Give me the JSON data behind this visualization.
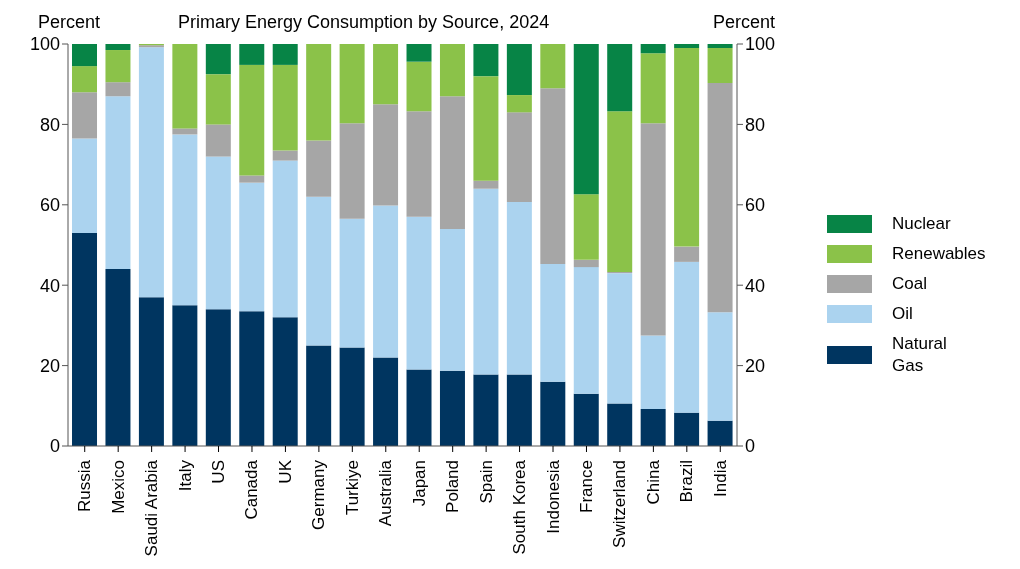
{
  "chart_data": {
    "type": "bar",
    "title": "Primary Energy Consumption by Source, 2024",
    "ylabel": "Percent",
    "y2label": "Percent",
    "categories": [
      "Russia",
      "Mexico",
      "Saudi Arabia",
      "Italy",
      "US",
      "Canada",
      "UK",
      "Germany",
      "Turkiye",
      "Australia",
      "Japan",
      "Poland",
      "Spain",
      "South Korea",
      "Indonesia",
      "France",
      "Switzerland",
      "China",
      "Brazil",
      "India"
    ],
    "stacked": true,
    "series": [
      {
        "name": "Natural Gas",
        "color": "#003560",
        "values": [
          53,
          44,
          37,
          35,
          34,
          33.5,
          32,
          25,
          24.5,
          22,
          19,
          18.7,
          17.8,
          17.8,
          16,
          13,
          10.6,
          9.2,
          8.3,
          6.3
        ]
      },
      {
        "name": "Oil",
        "color": "#abd3ef",
        "values": [
          23.5,
          43,
          62.2,
          42.5,
          38,
          32,
          39,
          37,
          32,
          37.8,
          38,
          35.3,
          46.2,
          42.9,
          29.3,
          31.5,
          32.4,
          18.3,
          37.5,
          27
        ]
      },
      {
        "name": "Coal",
        "color": "#a6a6a6",
        "values": [
          11.5,
          3.5,
          0.5,
          1.5,
          8,
          1.8,
          2.5,
          14,
          23.8,
          25.2,
          26.3,
          33,
          2,
          22.3,
          43.7,
          1.8,
          0.3,
          52.8,
          3.8,
          57
        ]
      },
      {
        "name": "Renewables",
        "color": "#8bc249",
        "values": [
          6.5,
          8,
          0.3,
          21,
          12.5,
          27.5,
          21.3,
          24,
          19.7,
          15,
          12.3,
          13,
          26,
          4.3,
          11,
          16.3,
          40,
          17.4,
          49.4,
          8.7
        ]
      },
      {
        "name": "Nuclear",
        "color": "#078446",
        "values": [
          5.5,
          1.5,
          0,
          0,
          7.5,
          5.2,
          5.2,
          0,
          0,
          0,
          4.4,
          0,
          8,
          12.7,
          0,
          37.4,
          16.7,
          2.3,
          1,
          1
        ]
      }
    ],
    "ylim": [
      0,
      100
    ],
    "yticks": [
      0,
      20,
      40,
      60,
      80,
      100
    ],
    "y2lim": [
      0,
      100
    ],
    "y2ticks": [
      0,
      20,
      40,
      60,
      80,
      100
    ],
    "legend": "right",
    "grid": false
  }
}
